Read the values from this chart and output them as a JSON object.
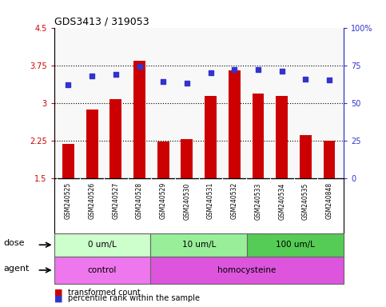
{
  "title": "GDS3413 / 319053",
  "samples": [
    "GSM240525",
    "GSM240526",
    "GSM240527",
    "GSM240528",
    "GSM240529",
    "GSM240530",
    "GSM240531",
    "GSM240532",
    "GSM240533",
    "GSM240534",
    "GSM240535",
    "GSM240848"
  ],
  "bar_values": [
    2.18,
    2.87,
    3.08,
    3.84,
    2.23,
    2.28,
    3.13,
    3.65,
    3.18,
    3.13,
    2.35,
    2.25
  ],
  "percentile_values": [
    62,
    68,
    69,
    74,
    64,
    63,
    70,
    72,
    72,
    71,
    66,
    65
  ],
  "bar_color": "#cc0000",
  "dot_color": "#3333cc",
  "ylim_left": [
    1.5,
    4.5
  ],
  "ylim_right": [
    0,
    100
  ],
  "yticks_left": [
    1.5,
    2.25,
    3.0,
    3.75,
    4.5
  ],
  "ytick_labels_left": [
    "1.5",
    "2.25",
    "3",
    "3.75",
    "4.5"
  ],
  "yticks_right": [
    0,
    25,
    50,
    75,
    100
  ],
  "ytick_labels_right": [
    "0",
    "25",
    "50",
    "75",
    "100%"
  ],
  "hlines": [
    2.25,
    3.0,
    3.75
  ],
  "dose_groups": [
    {
      "label": "0 um/L",
      "start": 0,
      "end": 4,
      "color": "#ccffcc"
    },
    {
      "label": "10 um/L",
      "start": 4,
      "end": 8,
      "color": "#99ee99"
    },
    {
      "label": "100 um/L",
      "start": 8,
      "end": 12,
      "color": "#55cc55"
    }
  ],
  "agent_groups": [
    {
      "label": "control",
      "start": 0,
      "end": 4,
      "color": "#ee77ee"
    },
    {
      "label": "homocysteine",
      "start": 4,
      "end": 12,
      "color": "#dd55dd"
    }
  ],
  "legend_items": [
    {
      "color": "#cc0000",
      "label": "transformed count",
      "marker": "s"
    },
    {
      "color": "#3333cc",
      "label": "percentile rank within the sample",
      "marker": "s"
    }
  ],
  "bar_width": 0.5,
  "chart_bg": "#f8f8f8",
  "sample_bg": "#d8d8d8",
  "background_color": "#ffffff"
}
